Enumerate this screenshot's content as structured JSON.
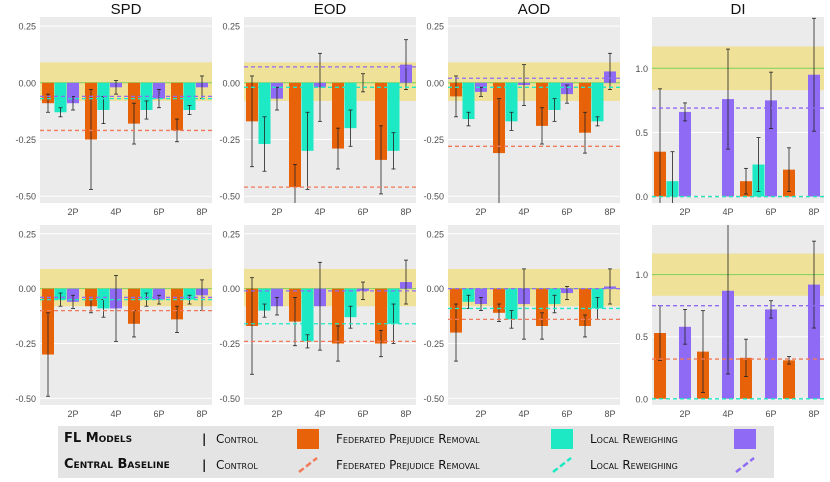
{
  "chart_data": {
    "type": "bar",
    "metrics": [
      "SPD",
      "EOD",
      "AOD",
      "DI"
    ],
    "categories": [
      "2P",
      "4P",
      "6P",
      "8P"
    ],
    "series_names": [
      "Control",
      "Federated Prejudice Removal",
      "Local Reweighing"
    ],
    "colors": {
      "control": "#e8620a",
      "prejudice": "#1de9c4",
      "reweighing": "#8f6bf5",
      "panel_bg": "#ebebeb",
      "fair_band": "#f1e08f",
      "fair_line": "#7ccf5a"
    },
    "panels": [
      {
        "metric": "SPD",
        "row": 1,
        "ylim": [
          -0.53,
          0.29
        ],
        "yticks": [
          0.25,
          0.0,
          -0.25,
          -0.5
        ],
        "ytick_labels": [
          "0.25",
          "0.00",
          "-0.25",
          "-0.50"
        ],
        "fair_band": [
          -0.08,
          0.09
        ],
        "fair_line": 0.0,
        "baselines": {
          "control": -0.21,
          "prejudice": -0.07,
          "reweighing": -0.06
        },
        "bars": {
          "2P": [
            {
              "v": -0.09,
              "e": 0.04
            },
            {
              "v": -0.13,
              "e": 0.02
            },
            {
              "v": -0.09,
              "e": 0.03
            }
          ],
          "4P": [
            {
              "v": -0.25,
              "e": 0.22
            },
            {
              "v": -0.12,
              "e": 0.06
            },
            {
              "v": -0.02,
              "e": 0.03
            }
          ],
          "6P": [
            {
              "v": -0.18,
              "e": 0.09
            },
            {
              "v": -0.12,
              "e": 0.04
            },
            {
              "v": -0.07,
              "e": 0.04
            }
          ],
          "8P": [
            {
              "v": -0.21,
              "e": 0.05
            },
            {
              "v": -0.12,
              "e": 0.02
            },
            {
              "v": -0.02,
              "e": 0.05
            }
          ]
        }
      },
      {
        "metric": "EOD",
        "row": 1,
        "ylim": [
          -0.53,
          0.29
        ],
        "yticks": [
          0.25,
          0.0,
          -0.25,
          -0.5
        ],
        "ytick_labels": [
          "0.25",
          "0.00",
          "-0.25",
          "-0.50"
        ],
        "fair_band": [
          -0.08,
          0.09
        ],
        "fair_line": 0.0,
        "baselines": {
          "control": -0.46,
          "prejudice": -0.02,
          "reweighing": 0.07
        },
        "bars": {
          "2P": [
            {
              "v": -0.17,
              "e": 0.2
            },
            {
              "v": -0.27,
              "e": 0.12
            },
            {
              "v": -0.07,
              "e": 0.05
            }
          ],
          "4P": [
            {
              "v": -0.46,
              "e": 0.1
            },
            {
              "v": -0.3,
              "e": 0.17
            },
            {
              "v": -0.02,
              "e": 0.15
            }
          ],
          "6P": [
            {
              "v": -0.29,
              "e": 0.09
            },
            {
              "v": -0.2,
              "e": 0.08
            },
            {
              "v": 0.0,
              "e": 0.04
            }
          ],
          "8P": [
            {
              "v": -0.34,
              "e": 0.15
            },
            {
              "v": -0.3,
              "e": 0.08
            },
            {
              "v": 0.08,
              "e": 0.11
            }
          ]
        }
      },
      {
        "metric": "AOD",
        "row": 1,
        "ylim": [
          -0.53,
          0.29
        ],
        "yticks": [
          0.25,
          0.0,
          -0.25,
          -0.5
        ],
        "ytick_labels": [
          "0.25",
          "0.00",
          "-0.25",
          "-0.50"
        ],
        "fair_band": [
          -0.08,
          0.09
        ],
        "fair_line": 0.0,
        "baselines": {
          "control": -0.28,
          "prejudice": -0.02,
          "reweighing": 0.02
        },
        "bars": {
          "2P": [
            {
              "v": -0.06,
              "e": 0.09
            },
            {
              "v": -0.16,
              "e": 0.03
            },
            {
              "v": -0.04,
              "e": 0.02
            }
          ],
          "4P": [
            {
              "v": -0.31,
              "e": 0.24
            },
            {
              "v": -0.17,
              "e": 0.04
            },
            {
              "v": -0.01,
              "e": 0.09
            }
          ],
          "6P": [
            {
              "v": -0.19,
              "e": 0.08
            },
            {
              "v": -0.12,
              "e": 0.05
            },
            {
              "v": -0.05,
              "e": 0.04
            }
          ],
          "8P": [
            {
              "v": -0.22,
              "e": 0.09
            },
            {
              "v": -0.17,
              "e": 0.02
            },
            {
              "v": 0.05,
              "e": 0.08
            }
          ]
        }
      },
      {
        "metric": "DI",
        "row": 1,
        "ylim": [
          -0.05,
          1.4
        ],
        "yticks": [
          1.0,
          0.5,
          0.0
        ],
        "ytick_labels": [
          "1.0",
          "0.5",
          "0.0"
        ],
        "fair_band": [
          0.83,
          1.17
        ],
        "fair_line": 1.0,
        "baselines": {
          "control": 0.0,
          "prejudice": 0.0,
          "reweighing": 0.69
        },
        "bars": {
          "2P": [
            {
              "v": 0.35,
              "e": 0.49
            },
            {
              "v": 0.12,
              "e": 0.23
            },
            {
              "v": 0.66,
              "e": 0.07
            }
          ],
          "4P": [
            {
              "v": 0.0,
              "e": 0.0
            },
            {
              "v": 0.0,
              "e": 0.0
            },
            {
              "v": 0.76,
              "e": 0.39
            }
          ],
          "6P": [
            {
              "v": 0.12,
              "e": 0.1
            },
            {
              "v": 0.25,
              "e": 0.21
            },
            {
              "v": 0.75,
              "e": 0.22
            }
          ],
          "8P": [
            {
              "v": 0.21,
              "e": 0.17
            },
            {
              "v": 0.0,
              "e": 0.0
            },
            {
              "v": 0.95,
              "e": 0.44
            }
          ]
        }
      },
      {
        "metric": "SPD",
        "row": 2,
        "ylim": [
          -0.53,
          0.29
        ],
        "yticks": [
          0.25,
          0.0,
          -0.25,
          -0.5
        ],
        "ytick_labels": [
          "0.25",
          "0.00",
          "-0.25",
          "-0.50"
        ],
        "fair_band": [
          -0.08,
          0.09
        ],
        "fair_line": 0.0,
        "baselines": {
          "control": -0.1,
          "prejudice": -0.05,
          "reweighing": -0.04
        },
        "bars": {
          "2P": [
            {
              "v": -0.3,
              "e": 0.19
            },
            {
              "v": -0.05,
              "e": 0.03
            },
            {
              "v": -0.06,
              "e": 0.03
            }
          ],
          "4P": [
            {
              "v": -0.08,
              "e": 0.03
            },
            {
              "v": -0.09,
              "e": 0.04
            },
            {
              "v": -0.09,
              "e": 0.15
            }
          ],
          "6P": [
            {
              "v": -0.16,
              "e": 0.06
            },
            {
              "v": -0.05,
              "e": 0.03
            },
            {
              "v": -0.05,
              "e": 0.02
            }
          ],
          "8P": [
            {
              "v": -0.14,
              "e": 0.06
            },
            {
              "v": -0.05,
              "e": 0.02
            },
            {
              "v": -0.03,
              "e": 0.07
            }
          ]
        }
      },
      {
        "metric": "EOD",
        "row": 2,
        "ylim": [
          -0.53,
          0.29
        ],
        "yticks": [
          0.25,
          0.0,
          -0.25,
          -0.5
        ],
        "ytick_labels": [
          "0.25",
          "0.00",
          "-0.25",
          "-0.50"
        ],
        "fair_band": [
          -0.08,
          0.09
        ],
        "fair_line": 0.0,
        "baselines": {
          "control": -0.24,
          "prejudice": -0.16,
          "reweighing": -0.01
        },
        "bars": {
          "2P": [
            {
              "v": -0.17,
              "e": 0.22
            },
            {
              "v": -0.1,
              "e": 0.03
            },
            {
              "v": -0.08,
              "e": 0.04
            }
          ],
          "4P": [
            {
              "v": -0.15,
              "e": 0.11
            },
            {
              "v": -0.24,
              "e": 0.03
            },
            {
              "v": -0.08,
              "e": 0.2
            }
          ],
          "6P": [
            {
              "v": -0.25,
              "e": 0.08
            },
            {
              "v": -0.13,
              "e": 0.05
            },
            {
              "v": -0.01,
              "e": 0.04
            }
          ],
          "8P": [
            {
              "v": -0.25,
              "e": 0.06
            },
            {
              "v": -0.16,
              "e": 0.09
            },
            {
              "v": 0.03,
              "e": 0.1
            }
          ]
        }
      },
      {
        "metric": "AOD",
        "row": 2,
        "ylim": [
          -0.53,
          0.29
        ],
        "yticks": [
          0.25,
          0.0,
          -0.25,
          -0.5
        ],
        "ytick_labels": [
          "0.25",
          "0.00",
          "-0.25",
          "-0.50"
        ],
        "fair_band": [
          -0.08,
          0.09
        ],
        "fair_line": 0.0,
        "baselines": {
          "control": -0.14,
          "prejudice": -0.09,
          "reweighing": 0.0
        },
        "bars": {
          "2P": [
            {
              "v": -0.2,
              "e": 0.13
            },
            {
              "v": -0.06,
              "e": 0.03
            },
            {
              "v": -0.07,
              "e": 0.03
            }
          ],
          "4P": [
            {
              "v": -0.11,
              "e": 0.04
            },
            {
              "v": -0.14,
              "e": 0.04
            },
            {
              "v": -0.07,
              "e": 0.16
            }
          ],
          "6P": [
            {
              "v": -0.17,
              "e": 0.06
            },
            {
              "v": -0.07,
              "e": 0.04
            },
            {
              "v": -0.02,
              "e": 0.03
            }
          ],
          "8P": [
            {
              "v": -0.17,
              "e": 0.05
            },
            {
              "v": -0.09,
              "e": 0.05
            },
            {
              "v": 0.01,
              "e": 0.08
            }
          ]
        }
      },
      {
        "metric": "DI",
        "row": 2,
        "ylim": [
          -0.05,
          1.4
        ],
        "yticks": [
          1.0,
          0.5,
          0.0
        ],
        "ytick_labels": [
          "1.0",
          "0.5",
          "0.0"
        ],
        "fair_band": [
          0.83,
          1.17
        ],
        "fair_line": 1.0,
        "baselines": {
          "control": 0.32,
          "prejudice": 0.0,
          "reweighing": 0.75
        },
        "bars": {
          "2P": [
            {
              "v": 0.53,
              "e": 0.22
            },
            {
              "v": 0.0,
              "e": 0.0
            },
            {
              "v": 0.58,
              "e": 0.14
            }
          ],
          "4P": [
            {
              "v": 0.38,
              "e": 0.33
            },
            {
              "v": 0.0,
              "e": 0.0
            },
            {
              "v": 0.87,
              "e": 0.67
            }
          ],
          "6P": [
            {
              "v": 0.33,
              "e": 0.15
            },
            {
              "v": 0.0,
              "e": 0.0
            },
            {
              "v": 0.72,
              "e": 0.07
            }
          ],
          "8P": [
            {
              "v": 0.31,
              "e": 0.03
            },
            {
              "v": 0.0,
              "e": 0.0
            },
            {
              "v": 0.92,
              "e": 0.35
            }
          ]
        }
      }
    ]
  },
  "legend": {
    "row1": {
      "header": "FL Models",
      "sep": "|",
      "control": "Control",
      "prejudice": "Federated Prejudice Removal",
      "reweighing": "Local Reweighing"
    },
    "row2": {
      "header": "Central Baseline",
      "sep": "|",
      "control": "Control",
      "prejudice": "Federated Prejudice Removal",
      "reweighing": "Local Reweighing"
    }
  }
}
